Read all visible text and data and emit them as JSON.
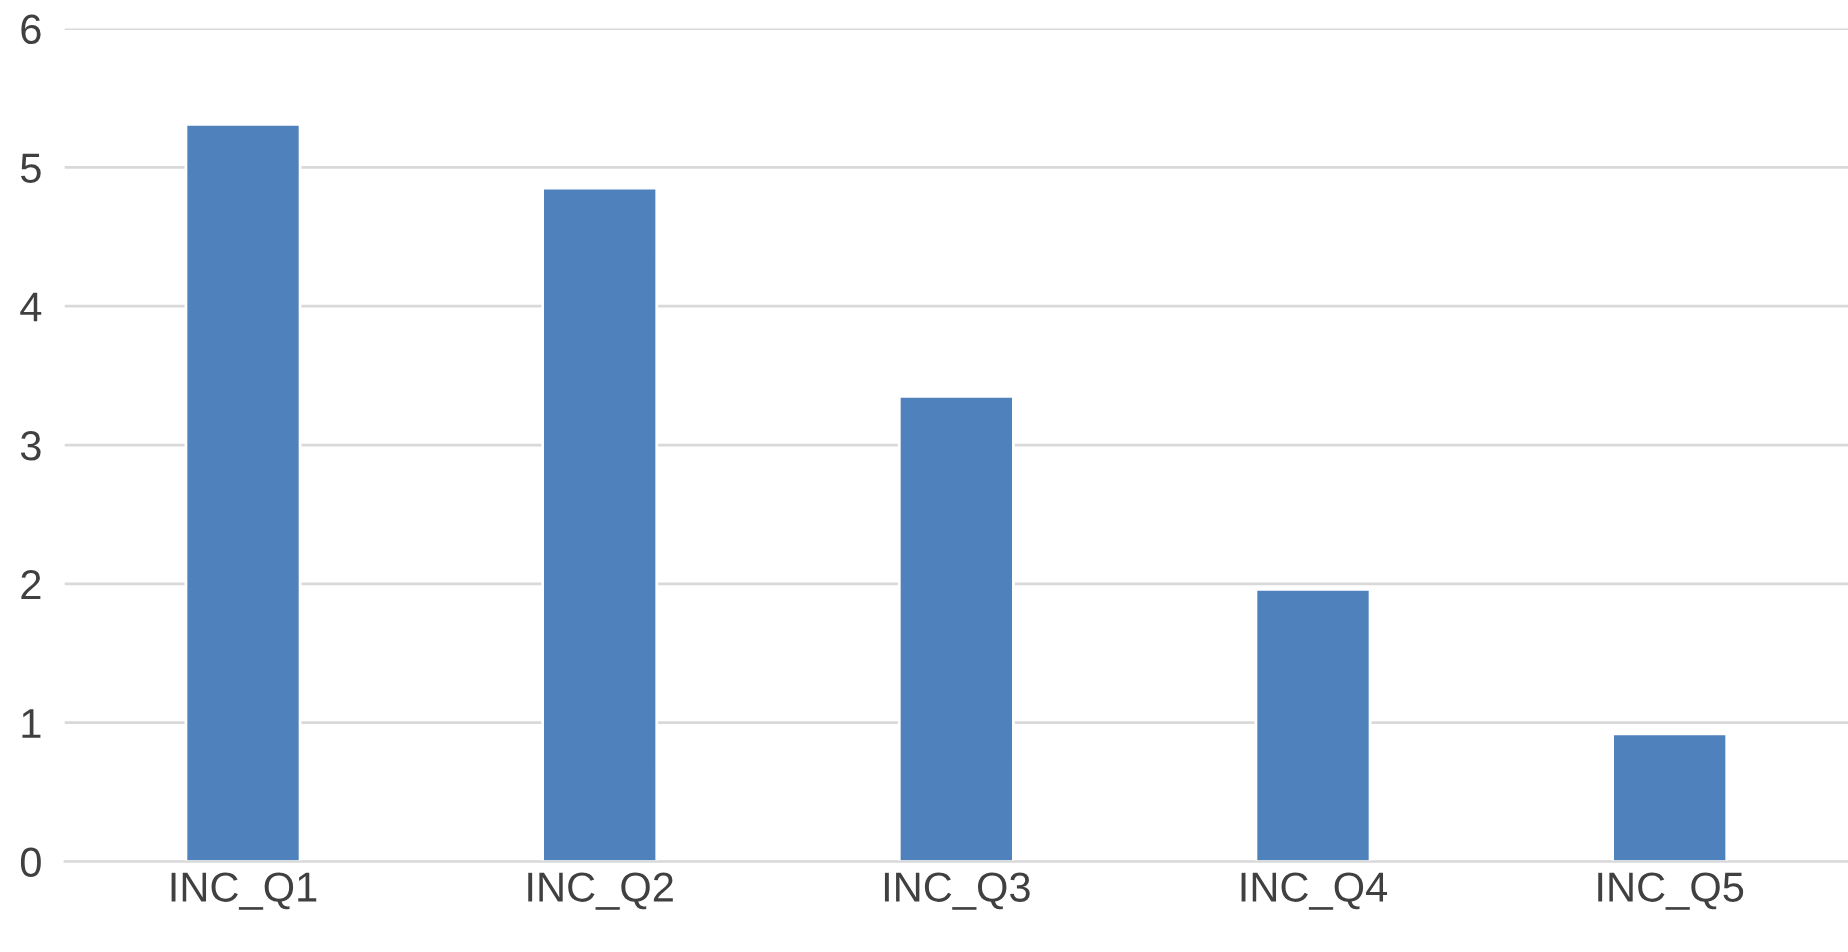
{
  "chart_data": {
    "type": "bar",
    "categories": [
      "INC_Q1",
      "INC_Q2",
      "INC_Q3",
      "INC_Q4",
      "INC_Q5"
    ],
    "values": [
      5.31,
      4.85,
      3.35,
      1.96,
      0.92
    ],
    "color": "#4f81bd",
    "ylim": [
      0,
      6
    ],
    "yticks": [
      0,
      1,
      2,
      3,
      4,
      5,
      6
    ],
    "grid": "y"
  }
}
